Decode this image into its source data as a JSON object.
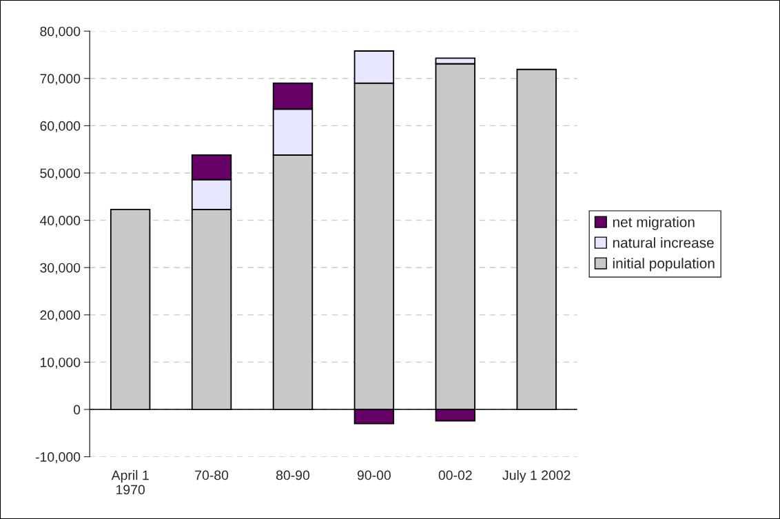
{
  "chart_data": {
    "type": "bar",
    "stacked": true,
    "categories": [
      "April 1\n1970",
      "70-80",
      "80-90",
      "90-00",
      "00-02",
      "July 1 2002"
    ],
    "series": [
      {
        "name": "initial population",
        "color": "#c8c8c8",
        "values": [
          42300,
          42300,
          53800,
          69000,
          73100,
          71900
        ]
      },
      {
        "name": "natural increase",
        "color": "#e6e6ff",
        "values": [
          null,
          6300,
          9700,
          6800,
          1200,
          null
        ]
      },
      {
        "name": "net migration",
        "color": "#660066",
        "values": [
          null,
          5200,
          5500,
          -3000,
          -2400,
          null
        ]
      }
    ],
    "ylim": [
      -10000,
      80000
    ],
    "yticks": [
      {
        "value": -10000,
        "label": "-10,000"
      },
      0,
      {
        "value": 10000,
        "label": "10,000"
      },
      {
        "value": 20000,
        "label": "20,000"
      },
      {
        "value": 30000,
        "label": "30,000"
      },
      {
        "value": 40000,
        "label": "40,000"
      },
      {
        "value": 50000,
        "label": "50,000"
      },
      {
        "value": 60000,
        "label": "60,000"
      },
      {
        "value": 70000,
        "label": "70,000"
      },
      {
        "value": 80000,
        "label": "80,000"
      }
    ],
    "grid": "y",
    "legend": "right"
  }
}
